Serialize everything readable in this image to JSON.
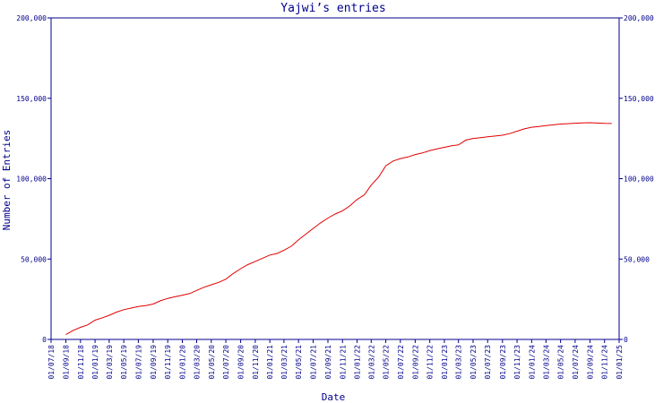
{
  "chart_data": {
    "type": "line",
    "title": "Yajwi’s entries",
    "xlabel": "Date",
    "ylabel": "Number of Entries",
    "ylim": [
      0,
      200000
    ],
    "y_ticks": [
      0,
      50000,
      100000,
      150000,
      200000
    ],
    "y_tick_labels": [
      "0",
      "50,000",
      "100,000",
      "150,000",
      "200,000"
    ],
    "x_range": [
      "2018-07-01",
      "2025-01-01"
    ],
    "x_tick_labels": [
      "01/07/18",
      "01/09/18",
      "01/11/18",
      "01/01/19",
      "01/03/19",
      "01/05/19",
      "01/07/19",
      "01/09/19",
      "01/11/19",
      "01/01/20",
      "01/03/20",
      "01/05/20",
      "01/07/20",
      "01/09/20",
      "01/11/20",
      "01/01/21",
      "01/03/21",
      "01/05/21",
      "01/07/21",
      "01/09/21",
      "01/11/21",
      "01/01/22",
      "01/03/22",
      "01/05/22",
      "01/07/22",
      "01/09/22",
      "01/11/22",
      "01/01/23",
      "01/03/23",
      "01/05/23",
      "01/07/23",
      "01/09/23",
      "01/11/23",
      "01/01/24",
      "01/03/24",
      "01/05/24",
      "01/07/24",
      "01/09/24",
      "01/11/24",
      "01/01/25"
    ],
    "grid": false,
    "line_color": "#e00000",
    "axis_color": "#00008b",
    "series": [
      {
        "x": [
          "2018-09-01",
          "2018-10-01",
          "2018-11-01",
          "2018-12-01",
          "2019-01-01",
          "2019-02-01",
          "2019-03-01",
          "2019-04-01",
          "2019-05-01",
          "2019-06-01",
          "2019-07-01",
          "2019-08-01",
          "2019-09-01",
          "2019-10-01",
          "2019-11-01",
          "2019-12-01",
          "2020-01-01",
          "2020-02-01",
          "2020-03-01",
          "2020-04-01",
          "2020-05-01",
          "2020-06-01",
          "2020-07-01",
          "2020-08-01",
          "2020-09-01",
          "2020-10-01",
          "2020-11-01",
          "2020-12-01",
          "2021-01-01",
          "2021-02-01",
          "2021-03-01",
          "2021-04-01",
          "2021-05-01",
          "2021-06-01",
          "2021-07-01",
          "2021-08-01",
          "2021-09-01",
          "2021-10-01",
          "2021-11-01",
          "2021-12-01",
          "2022-01-01",
          "2022-02-01",
          "2022-03-01",
          "2022-04-01",
          "2022-05-01",
          "2022-06-01",
          "2022-07-01",
          "2022-08-01",
          "2022-09-01",
          "2022-10-01",
          "2022-11-01",
          "2022-12-01",
          "2023-01-01",
          "2023-02-01",
          "2023-03-01",
          "2023-04-01",
          "2023-05-01",
          "2023-06-01",
          "2023-07-01",
          "2023-08-01",
          "2023-09-01",
          "2023-10-01",
          "2023-11-01",
          "2023-12-01",
          "2024-01-01",
          "2024-02-01",
          "2024-03-01",
          "2024-04-01",
          "2024-05-01",
          "2024-06-01",
          "2024-07-01",
          "2024-08-01",
          "2024-09-01",
          "2024-10-01",
          "2024-11-01",
          "2024-12-01"
        ],
        "values": [
          3000,
          5500,
          7500,
          9000,
          12000,
          13500,
          15000,
          17000,
          18500,
          19500,
          20500,
          21000,
          22000,
          24000,
          25500,
          26500,
          27500,
          28500,
          30500,
          32500,
          34000,
          35500,
          37500,
          41000,
          44000,
          46500,
          48500,
          50500,
          52500,
          53500,
          55500,
          58000,
          62000,
          65500,
          69000,
          72500,
          75500,
          78000,
          80000,
          83000,
          87000,
          90000,
          96000,
          101000,
          108000,
          111000,
          112500,
          113500,
          115000,
          116000,
          117500,
          118500,
          119500,
          120500,
          121000,
          124000,
          125000,
          125500,
          126000,
          126500,
          127000,
          128000,
          129500,
          131000,
          132000,
          132500,
          133000,
          133500,
          134000,
          134200,
          134500,
          134700,
          134800,
          134600,
          134400,
          134300
        ]
      }
    ]
  }
}
